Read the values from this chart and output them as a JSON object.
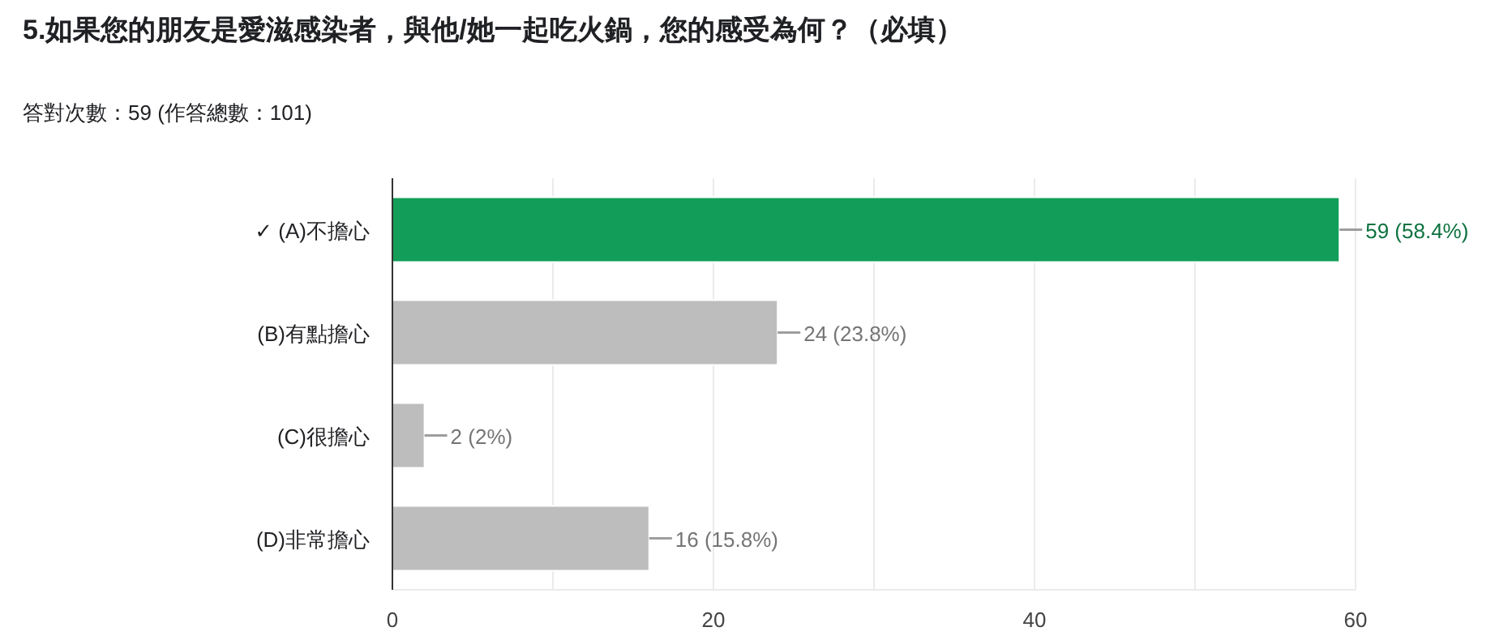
{
  "chart_data": {
    "type": "bar",
    "orientation": "horizontal",
    "title": "5.如果您的朋友是愛滋感染者，與他/她一起吃火鍋，您的感受為何？（必填）",
    "subtitle": "答對次數：59 (作答總數：101)",
    "categories": [
      "✓ (A)不擔心",
      "(B)有點擔心",
      "(C)很擔心",
      "(D)非常擔心"
    ],
    "values": [
      59,
      24,
      2,
      16
    ],
    "colors": [
      "#129e58",
      "#bdbdbd",
      "#bdbdbd",
      "#bdbdbd"
    ],
    "value_labels": [
      "59 (58.4%)",
      "24 (23.8%)",
      "2 (2%)",
      "16 (15.8%)"
    ],
    "xlim": [
      0,
      60
    ],
    "xticks": [
      0,
      {
        "value": 10,
        "label": null
      },
      20,
      {
        "value": 30,
        "label": null
      },
      40,
      {
        "value": 50,
        "label": null
      },
      60
    ],
    "grid": "x"
  }
}
